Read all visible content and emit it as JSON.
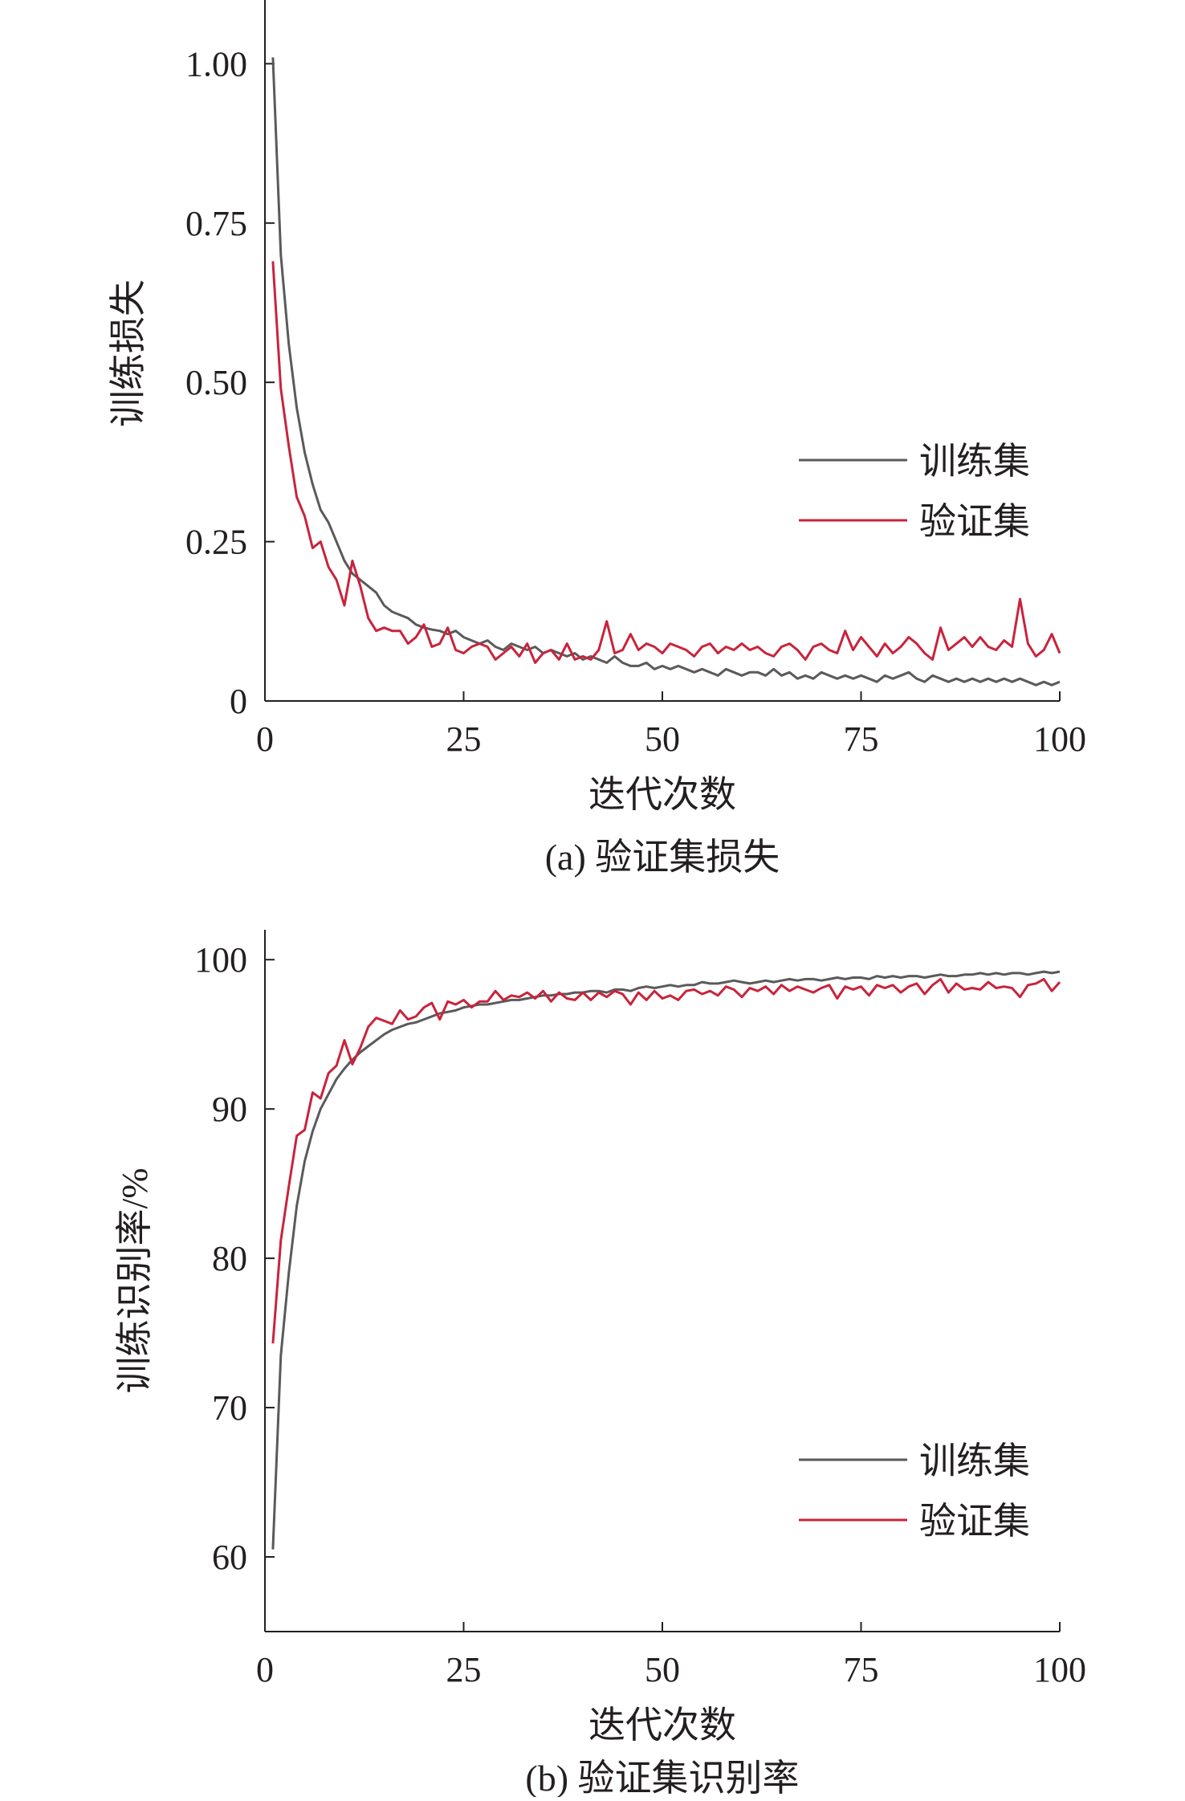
{
  "chart_data": [
    {
      "type": "line",
      "caption": "(a) 验证集损失",
      "xlabel": "迭代次数",
      "ylabel": "训练损失",
      "xlim": [
        0,
        100
      ],
      "ylim": [
        0,
        1.1
      ],
      "xticks": [
        0,
        25,
        50,
        75,
        100
      ],
      "xtick_labels": [
        "0",
        "25",
        "50",
        "75",
        "100"
      ],
      "yticks": [
        0,
        0.25,
        0.5,
        0.75,
        1.0
      ],
      "ytick_labels": [
        "0",
        "0.25",
        "0.50",
        "0.75",
        "1.00"
      ],
      "grid": false,
      "legend_position": "right",
      "x": [
        1,
        2,
        3,
        4,
        5,
        6,
        7,
        8,
        9,
        10,
        11,
        12,
        13,
        14,
        15,
        16,
        17,
        18,
        19,
        20,
        21,
        22,
        23,
        24,
        25,
        26,
        27,
        28,
        29,
        30,
        31,
        32,
        33,
        34,
        35,
        36,
        37,
        38,
        39,
        40,
        41,
        42,
        43,
        44,
        45,
        46,
        47,
        48,
        49,
        50,
        51,
        52,
        53,
        54,
        55,
        56,
        57,
        58,
        59,
        60,
        61,
        62,
        63,
        64,
        65,
        66,
        67,
        68,
        69,
        70,
        71,
        72,
        73,
        74,
        75,
        76,
        77,
        78,
        79,
        80,
        81,
        82,
        83,
        84,
        85,
        86,
        87,
        88,
        89,
        90,
        91,
        92,
        93,
        94,
        95,
        96,
        97,
        98,
        99,
        100
      ],
      "series": [
        {
          "name": "训练集",
          "color": "#5a5a5a",
          "values": [
            1.01,
            0.7,
            0.56,
            0.46,
            0.39,
            0.34,
            0.3,
            0.28,
            0.25,
            0.22,
            0.2,
            0.19,
            0.18,
            0.17,
            0.15,
            0.14,
            0.135,
            0.13,
            0.12,
            0.115,
            0.112,
            0.11,
            0.105,
            0.11,
            0.1,
            0.095,
            0.09,
            0.095,
            0.085,
            0.08,
            0.09,
            0.085,
            0.08,
            0.085,
            0.075,
            0.08,
            0.075,
            0.07,
            0.075,
            0.065,
            0.07,
            0.065,
            0.06,
            0.07,
            0.06,
            0.055,
            0.055,
            0.06,
            0.05,
            0.055,
            0.05,
            0.055,
            0.05,
            0.045,
            0.05,
            0.045,
            0.04,
            0.05,
            0.045,
            0.04,
            0.045,
            0.045,
            0.04,
            0.05,
            0.04,
            0.045,
            0.035,
            0.04,
            0.035,
            0.045,
            0.04,
            0.035,
            0.04,
            0.035,
            0.04,
            0.035,
            0.03,
            0.04,
            0.035,
            0.04,
            0.045,
            0.035,
            0.03,
            0.04,
            0.035,
            0.03,
            0.035,
            0.03,
            0.035,
            0.03,
            0.035,
            0.03,
            0.035,
            0.03,
            0.035,
            0.03,
            0.025,
            0.03,
            0.025,
            0.03
          ]
        },
        {
          "name": "验证集",
          "color": "#c8243c",
          "values": [
            0.69,
            0.49,
            0.4,
            0.32,
            0.29,
            0.24,
            0.25,
            0.21,
            0.19,
            0.15,
            0.22,
            0.18,
            0.13,
            0.11,
            0.115,
            0.11,
            0.11,
            0.09,
            0.1,
            0.12,
            0.085,
            0.09,
            0.115,
            0.08,
            0.075,
            0.085,
            0.09,
            0.085,
            0.065,
            0.075,
            0.085,
            0.07,
            0.09,
            0.06,
            0.075,
            0.08,
            0.065,
            0.09,
            0.065,
            0.07,
            0.065,
            0.08,
            0.125,
            0.075,
            0.08,
            0.105,
            0.08,
            0.09,
            0.085,
            0.075,
            0.09,
            0.085,
            0.08,
            0.07,
            0.085,
            0.09,
            0.075,
            0.085,
            0.08,
            0.09,
            0.08,
            0.085,
            0.075,
            0.07,
            0.085,
            0.09,
            0.08,
            0.065,
            0.085,
            0.09,
            0.08,
            0.075,
            0.11,
            0.08,
            0.1,
            0.085,
            0.07,
            0.09,
            0.075,
            0.085,
            0.1,
            0.09,
            0.075,
            0.065,
            0.115,
            0.08,
            0.09,
            0.1,
            0.085,
            0.1,
            0.085,
            0.08,
            0.095,
            0.085,
            0.16,
            0.09,
            0.07,
            0.08,
            0.105,
            0.075
          ]
        }
      ]
    },
    {
      "type": "line",
      "caption": "(b) 验证集识别率",
      "xlabel": "迭代次数",
      "ylabel": "训练识别率/%",
      "xlim": [
        0,
        100
      ],
      "ylim": [
        55,
        102
      ],
      "xticks": [
        0,
        25,
        50,
        75,
        100
      ],
      "xtick_labels": [
        "0",
        "25",
        "50",
        "75",
        "100"
      ],
      "yticks": [
        60,
        70,
        80,
        90,
        100
      ],
      "ytick_labels": [
        "60",
        "70",
        "80",
        "90",
        "100"
      ],
      "grid": false,
      "legend_position": "bottom-right",
      "x": [
        1,
        2,
        3,
        4,
        5,
        6,
        7,
        8,
        9,
        10,
        11,
        12,
        13,
        14,
        15,
        16,
        17,
        18,
        19,
        20,
        21,
        22,
        23,
        24,
        25,
        26,
        27,
        28,
        29,
        30,
        31,
        32,
        33,
        34,
        35,
        36,
        37,
        38,
        39,
        40,
        41,
        42,
        43,
        44,
        45,
        46,
        47,
        48,
        49,
        50,
        51,
        52,
        53,
        54,
        55,
        56,
        57,
        58,
        59,
        60,
        61,
        62,
        63,
        64,
        65,
        66,
        67,
        68,
        69,
        70,
        71,
        72,
        73,
        74,
        75,
        76,
        77,
        78,
        79,
        80,
        81,
        82,
        83,
        84,
        85,
        86,
        87,
        88,
        89,
        90,
        91,
        92,
        93,
        94,
        95,
        96,
        97,
        98,
        99,
        100
      ],
      "series": [
        {
          "name": "训练集",
          "color": "#5a5a5a",
          "values": [
            60.5,
            73.5,
            79.0,
            83.5,
            86.5,
            88.5,
            90.0,
            91.0,
            92.0,
            92.7,
            93.3,
            93.8,
            94.2,
            94.6,
            95.0,
            95.3,
            95.5,
            95.7,
            95.8,
            96.0,
            96.2,
            96.4,
            96.5,
            96.6,
            96.8,
            96.9,
            97.0,
            97.0,
            97.1,
            97.2,
            97.3,
            97.3,
            97.4,
            97.5,
            97.6,
            97.6,
            97.7,
            97.7,
            97.8,
            97.8,
            97.9,
            97.9,
            97.8,
            98.0,
            98.0,
            97.9,
            98.1,
            98.2,
            98.1,
            98.2,
            98.3,
            98.2,
            98.3,
            98.3,
            98.5,
            98.4,
            98.4,
            98.5,
            98.6,
            98.5,
            98.4,
            98.5,
            98.6,
            98.5,
            98.6,
            98.7,
            98.6,
            98.7,
            98.7,
            98.6,
            98.7,
            98.8,
            98.7,
            98.8,
            98.8,
            98.7,
            98.9,
            98.8,
            98.9,
            98.8,
            98.9,
            98.9,
            98.8,
            98.9,
            99.0,
            98.9,
            98.9,
            99.0,
            99.0,
            99.1,
            99.0,
            99.1,
            99.0,
            99.1,
            99.1,
            99.0,
            99.1,
            99.2,
            99.1,
            99.2
          ]
        },
        {
          "name": "验证集",
          "color": "#c8243c",
          "values": [
            74.3,
            81.2,
            84.8,
            88.2,
            88.6,
            91.1,
            90.7,
            92.4,
            92.9,
            94.6,
            93.0,
            94.1,
            95.5,
            96.1,
            95.9,
            95.7,
            96.6,
            96.0,
            96.2,
            96.8,
            97.1,
            96.0,
            97.2,
            97.0,
            97.3,
            96.8,
            97.2,
            97.2,
            97.9,
            97.3,
            97.6,
            97.5,
            97.8,
            97.4,
            97.9,
            97.2,
            97.8,
            97.4,
            97.3,
            97.8,
            97.3,
            97.8,
            97.5,
            97.9,
            97.7,
            97.0,
            97.8,
            97.3,
            97.9,
            97.4,
            97.6,
            97.3,
            97.9,
            98.0,
            97.7,
            97.9,
            97.6,
            98.2,
            98.0,
            97.5,
            98.1,
            97.9,
            98.2,
            97.7,
            98.3,
            97.9,
            98.2,
            98.0,
            97.8,
            98.1,
            98.3,
            97.4,
            98.2,
            98.0,
            98.2,
            97.6,
            98.3,
            98.1,
            98.3,
            97.8,
            98.2,
            98.4,
            97.7,
            98.3,
            98.7,
            97.8,
            98.4,
            98.0,
            98.1,
            98.0,
            98.5,
            98.1,
            98.2,
            98.1,
            97.5,
            98.3,
            98.4,
            98.7,
            97.9,
            98.5
          ]
        }
      ]
    }
  ]
}
